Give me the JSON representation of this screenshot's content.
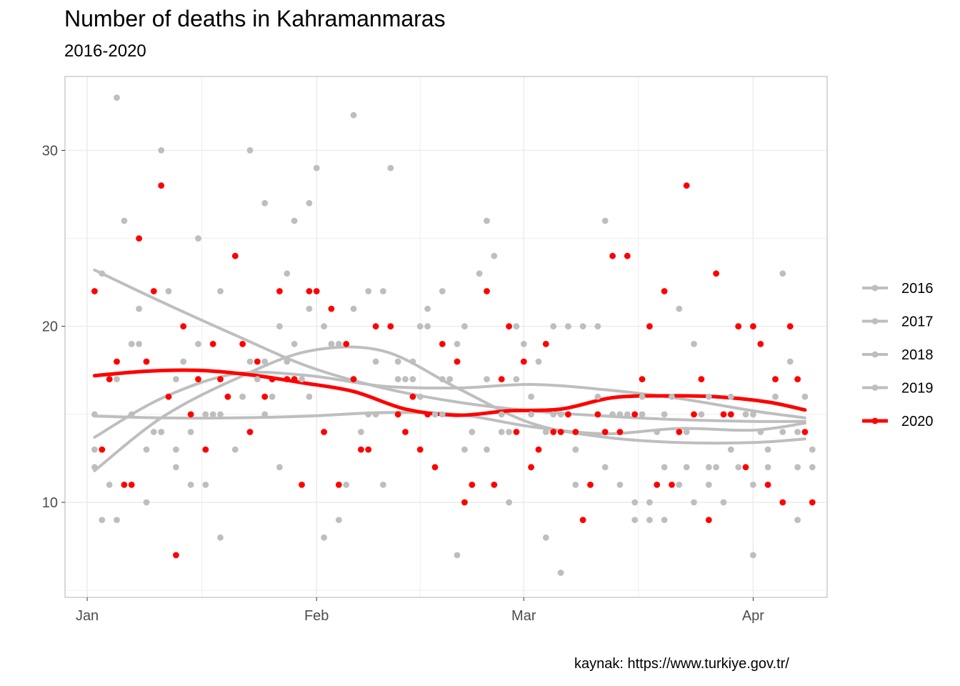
{
  "chart_data": {
    "type": "scatter",
    "title": "Number of deaths in Kahramanmaras",
    "subtitle": "2016-2020",
    "caption": "kaynak: https://www.turkiye.gov.tr/",
    "xlabel": "",
    "ylabel": "",
    "x_unit": "day of year",
    "xlim": [
      -3,
      100
    ],
    "ylim": [
      4.6,
      34.2
    ],
    "x_ticks": [
      {
        "value": 0,
        "label": "Jan"
      },
      {
        "value": 31,
        "label": "Feb"
      },
      {
        "value": 59,
        "label": "Mar"
      },
      {
        "value": 90,
        "label": "Apr"
      }
    ],
    "x_minor_ticks": [
      15.5,
      45,
      74.5
    ],
    "y_ticks": [
      10,
      20,
      30
    ],
    "y_minor_ticks": [
      5,
      15,
      25
    ],
    "legend_position": "right",
    "colors": {
      "background_years": "#bebebe",
      "highlight_year": "#ff0000",
      "grid": "#ebebeb",
      "panel_border": "#b3b3b3"
    },
    "series": [
      {
        "name": "2016",
        "color": "#bebebe",
        "highlight": false,
        "smooth_x": [
          1,
          10,
          20,
          30,
          40,
          50,
          60,
          70,
          80,
          90,
          97
        ],
        "smooth_y": [
          23.2,
          21.4,
          19.5,
          17.7,
          16.5,
          15.7,
          15.2,
          14.9,
          14.7,
          14.6,
          14.6
        ],
        "points": [
          [
            1,
            15
          ],
          [
            4,
            17
          ],
          [
            7,
            21
          ],
          [
            10,
            14
          ],
          [
            12,
            13
          ],
          [
            15,
            19
          ],
          [
            18,
            15
          ],
          [
            21,
            16
          ],
          [
            24,
            18
          ],
          [
            27,
            23
          ],
          [
            30,
            21
          ],
          [
            33,
            19
          ],
          [
            36,
            17
          ],
          [
            39,
            15
          ],
          [
            42,
            17
          ],
          [
            45,
            16
          ],
          [
            48,
            15
          ],
          [
            51,
            13
          ],
          [
            54,
            17
          ],
          [
            57,
            14
          ],
          [
            60,
            16
          ],
          [
            63,
            15
          ],
          [
            66,
            13
          ],
          [
            69,
            16
          ],
          [
            72,
            14
          ],
          [
            75,
            16
          ],
          [
            78,
            15
          ],
          [
            81,
            14
          ],
          [
            84,
            16
          ],
          [
            87,
            13
          ],
          [
            90,
            15
          ],
          [
            93,
            17
          ],
          [
            96,
            14
          ],
          [
            98,
            13
          ]
        ]
      },
      {
        "name": "2017",
        "color": "#bebebe",
        "highlight": false,
        "smooth_x": [
          1,
          10,
          20,
          30,
          40,
          50,
          60,
          70,
          80,
          90,
          97
        ],
        "smooth_y": [
          11.8,
          14.8,
          17.0,
          18.6,
          18.6,
          16.5,
          14.5,
          13.7,
          13.4,
          13.4,
          13.6
        ],
        "points": [
          [
            1,
            12
          ],
          [
            2,
            9
          ],
          [
            4,
            9
          ],
          [
            6,
            15
          ],
          [
            8,
            13
          ],
          [
            10,
            14
          ],
          [
            12,
            12
          ],
          [
            14,
            11
          ],
          [
            16,
            15
          ],
          [
            18,
            22
          ],
          [
            20,
            24
          ],
          [
            22,
            18
          ],
          [
            24,
            27
          ],
          [
            26,
            20
          ],
          [
            28,
            26
          ],
          [
            30,
            27
          ],
          [
            32,
            20
          ],
          [
            34,
            19
          ],
          [
            36,
            21
          ],
          [
            38,
            22
          ],
          [
            40,
            22
          ],
          [
            42,
            18
          ],
          [
            44,
            18
          ],
          [
            46,
            21
          ],
          [
            48,
            17
          ],
          [
            50,
            19
          ],
          [
            52,
            14
          ],
          [
            54,
            13
          ],
          [
            56,
            15
          ],
          [
            58,
            17
          ],
          [
            60,
            12
          ],
          [
            62,
            14
          ],
          [
            64,
            15
          ],
          [
            66,
            13
          ],
          [
            68,
            11
          ],
          [
            70,
            12
          ],
          [
            72,
            11
          ],
          [
            74,
            10
          ],
          [
            76,
            10
          ],
          [
            78,
            9
          ],
          [
            80,
            11
          ],
          [
            82,
            10
          ],
          [
            84,
            12
          ],
          [
            86,
            15
          ],
          [
            88,
            12
          ],
          [
            90,
            11
          ],
          [
            92,
            13
          ],
          [
            94,
            14
          ],
          [
            96,
            12
          ],
          [
            98,
            12
          ]
        ]
      },
      {
        "name": "2018",
        "color": "#bebebe",
        "highlight": false,
        "smooth_x": [
          1,
          10,
          20,
          30,
          40,
          50,
          60,
          70,
          80,
          90,
          97
        ],
        "smooth_y": [
          13.7,
          15.9,
          17.3,
          17.2,
          16.6,
          16.5,
          16.7,
          16.4,
          15.9,
          15.2,
          14.8
        ],
        "points": [
          [
            1,
            13
          ],
          [
            3,
            11
          ],
          [
            5,
            26
          ],
          [
            7,
            19
          ],
          [
            9,
            14
          ],
          [
            11,
            22
          ],
          [
            13,
            18
          ],
          [
            15,
            25
          ],
          [
            17,
            15
          ],
          [
            19,
            16
          ],
          [
            21,
            16
          ],
          [
            23,
            17
          ],
          [
            25,
            16
          ],
          [
            27,
            18
          ],
          [
            29,
            17
          ],
          [
            31,
            29
          ],
          [
            33,
            19
          ],
          [
            35,
            11
          ],
          [
            37,
            14
          ],
          [
            39,
            18
          ],
          [
            41,
            29
          ],
          [
            43,
            17
          ],
          [
            45,
            20
          ],
          [
            47,
            15
          ],
          [
            49,
            17
          ],
          [
            51,
            20
          ],
          [
            53,
            23
          ],
          [
            55,
            24
          ],
          [
            57,
            10
          ],
          [
            59,
            19
          ],
          [
            61,
            18
          ],
          [
            63,
            20
          ],
          [
            65,
            20
          ],
          [
            67,
            20
          ],
          [
            69,
            20
          ],
          [
            71,
            15
          ],
          [
            73,
            15
          ],
          [
            75,
            15
          ],
          [
            77,
            14
          ],
          [
            79,
            16
          ],
          [
            81,
            12
          ],
          [
            83,
            15
          ],
          [
            85,
            12
          ],
          [
            87,
            16
          ],
          [
            89,
            15
          ],
          [
            91,
            14
          ],
          [
            93,
            16
          ],
          [
            95,
            18
          ],
          [
            97,
            16
          ]
        ]
      },
      {
        "name": "2019",
        "color": "#bebebe",
        "highlight": false,
        "smooth_x": [
          1,
          10,
          20,
          30,
          40,
          50,
          60,
          70,
          80,
          90,
          97
        ],
        "smooth_y": [
          14.9,
          14.8,
          14.8,
          14.9,
          15.1,
          15.0,
          14.3,
          13.9,
          14.2,
          14.1,
          14.5
        ],
        "points": [
          [
            2,
            23
          ],
          [
            4,
            33
          ],
          [
            6,
            19
          ],
          [
            8,
            10
          ],
          [
            10,
            30
          ],
          [
            12,
            17
          ],
          [
            14,
            14
          ],
          [
            16,
            11
          ],
          [
            18,
            8
          ],
          [
            20,
            13
          ],
          [
            22,
            30
          ],
          [
            24,
            15
          ],
          [
            26,
            12
          ],
          [
            28,
            19
          ],
          [
            30,
            16
          ],
          [
            32,
            8
          ],
          [
            34,
            9
          ],
          [
            36,
            32
          ],
          [
            38,
            15
          ],
          [
            40,
            11
          ],
          [
            42,
            15
          ],
          [
            44,
            17
          ],
          [
            46,
            20
          ],
          [
            48,
            22
          ],
          [
            50,
            7
          ],
          [
            52,
            11
          ],
          [
            54,
            26
          ],
          [
            56,
            14
          ],
          [
            58,
            20
          ],
          [
            60,
            15
          ],
          [
            62,
            8
          ],
          [
            64,
            6
          ],
          [
            66,
            11
          ],
          [
            68,
            11
          ],
          [
            70,
            26
          ],
          [
            72,
            15
          ],
          [
            74,
            9
          ],
          [
            76,
            9
          ],
          [
            78,
            12
          ],
          [
            80,
            21
          ],
          [
            82,
            19
          ],
          [
            84,
            11
          ],
          [
            86,
            10
          ],
          [
            88,
            20
          ],
          [
            90,
            7
          ],
          [
            92,
            12
          ],
          [
            94,
            23
          ],
          [
            96,
            9
          ]
        ]
      },
      {
        "name": "2020",
        "color": "#ff0000",
        "highlight": true,
        "smooth_x": [
          1,
          8,
          15,
          22,
          29,
          36,
          43,
          50,
          57,
          64,
          71,
          78,
          85,
          92,
          97
        ],
        "smooth_y": [
          17.2,
          17.45,
          17.5,
          17.25,
          16.8,
          16.3,
          15.3,
          14.95,
          15.2,
          15.3,
          15.95,
          16.05,
          16.0,
          15.7,
          15.25
        ],
        "points": [
          [
            1,
            22
          ],
          [
            2,
            13
          ],
          [
            3,
            17
          ],
          [
            4,
            18
          ],
          [
            5,
            11
          ],
          [
            6,
            11
          ],
          [
            7,
            25
          ],
          [
            8,
            18
          ],
          [
            9,
            22
          ],
          [
            10,
            28
          ],
          [
            11,
            16
          ],
          [
            12,
            7
          ],
          [
            13,
            20
          ],
          [
            14,
            15
          ],
          [
            15,
            17
          ],
          [
            16,
            13
          ],
          [
            17,
            19
          ],
          [
            18,
            17
          ],
          [
            19,
            16
          ],
          [
            20,
            24
          ],
          [
            21,
            19
          ],
          [
            22,
            14
          ],
          [
            23,
            18
          ],
          [
            24,
            16
          ],
          [
            25,
            17
          ],
          [
            26,
            22
          ],
          [
            27,
            17
          ],
          [
            28,
            17
          ],
          [
            29,
            11
          ],
          [
            30,
            22
          ],
          [
            31,
            22
          ],
          [
            32,
            14
          ],
          [
            33,
            21
          ],
          [
            34,
            11
          ],
          [
            35,
            19
          ],
          [
            36,
            17
          ],
          [
            37,
            13
          ],
          [
            38,
            13
          ],
          [
            39,
            20
          ],
          [
            41,
            20
          ],
          [
            42,
            15
          ],
          [
            43,
            14
          ],
          [
            44,
            16
          ],
          [
            45,
            13
          ],
          [
            46,
            15
          ],
          [
            47,
            12
          ],
          [
            48,
            19
          ],
          [
            50,
            18
          ],
          [
            51,
            10
          ],
          [
            52,
            11
          ],
          [
            54,
            22
          ],
          [
            55,
            11
          ],
          [
            56,
            17
          ],
          [
            57,
            20
          ],
          [
            58,
            14
          ],
          [
            59,
            18
          ],
          [
            60,
            12
          ],
          [
            61,
            13
          ],
          [
            62,
            19
          ],
          [
            63,
            14
          ],
          [
            64,
            14
          ],
          [
            65,
            15
          ],
          [
            66,
            14
          ],
          [
            67,
            9
          ],
          [
            68,
            11
          ],
          [
            69,
            15
          ],
          [
            70,
            14
          ],
          [
            71,
            24
          ],
          [
            72,
            14
          ],
          [
            73,
            24
          ],
          [
            74,
            15
          ],
          [
            75,
            17
          ],
          [
            76,
            20
          ],
          [
            77,
            11
          ],
          [
            78,
            22
          ],
          [
            79,
            11
          ],
          [
            80,
            14
          ],
          [
            81,
            28
          ],
          [
            82,
            15
          ],
          [
            83,
            17
          ],
          [
            84,
            9
          ],
          [
            85,
            23
          ],
          [
            86,
            15
          ],
          [
            87,
            15
          ],
          [
            88,
            20
          ],
          [
            89,
            12
          ],
          [
            90,
            20
          ],
          [
            91,
            19
          ],
          [
            92,
            11
          ],
          [
            93,
            17
          ],
          [
            94,
            10
          ],
          [
            95,
            20
          ],
          [
            96,
            17
          ],
          [
            97,
            14
          ],
          [
            98,
            10
          ]
        ]
      }
    ]
  }
}
